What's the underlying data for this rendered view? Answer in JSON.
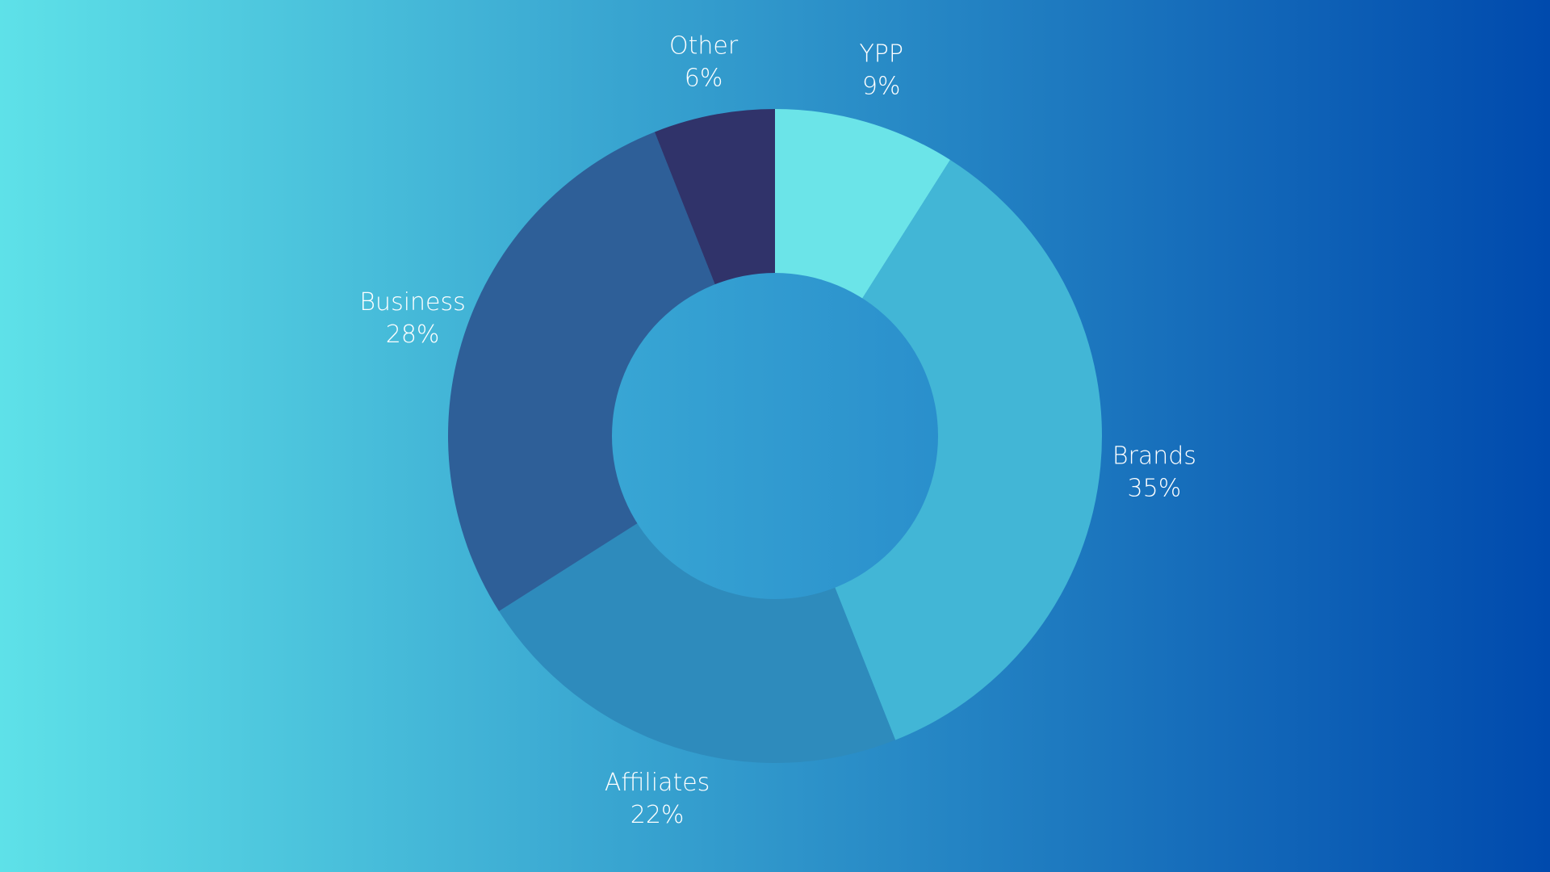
{
  "chart_data": {
    "type": "pie",
    "variant": "donut",
    "categories": [
      "YPP",
      "Brands",
      "Affiliates",
      "Business",
      "Other"
    ],
    "values": [
      9,
      35,
      22,
      28,
      6
    ],
    "value_labels": [
      "9%",
      "35%",
      "22%",
      "28%",
      "6%"
    ],
    "unit": "%",
    "colors": [
      "#6BE4E8",
      "#42B6D6",
      "#2E8BBC",
      "#2E5F98",
      "#30336A"
    ],
    "start_angle_deg": 0,
    "direction": "clockwise",
    "legend": "none",
    "labels": "outside"
  },
  "background": {
    "gradient_from": "#5EE1E8",
    "gradient_to": "#004AAD",
    "center_hole_color": "#2E98CF"
  }
}
